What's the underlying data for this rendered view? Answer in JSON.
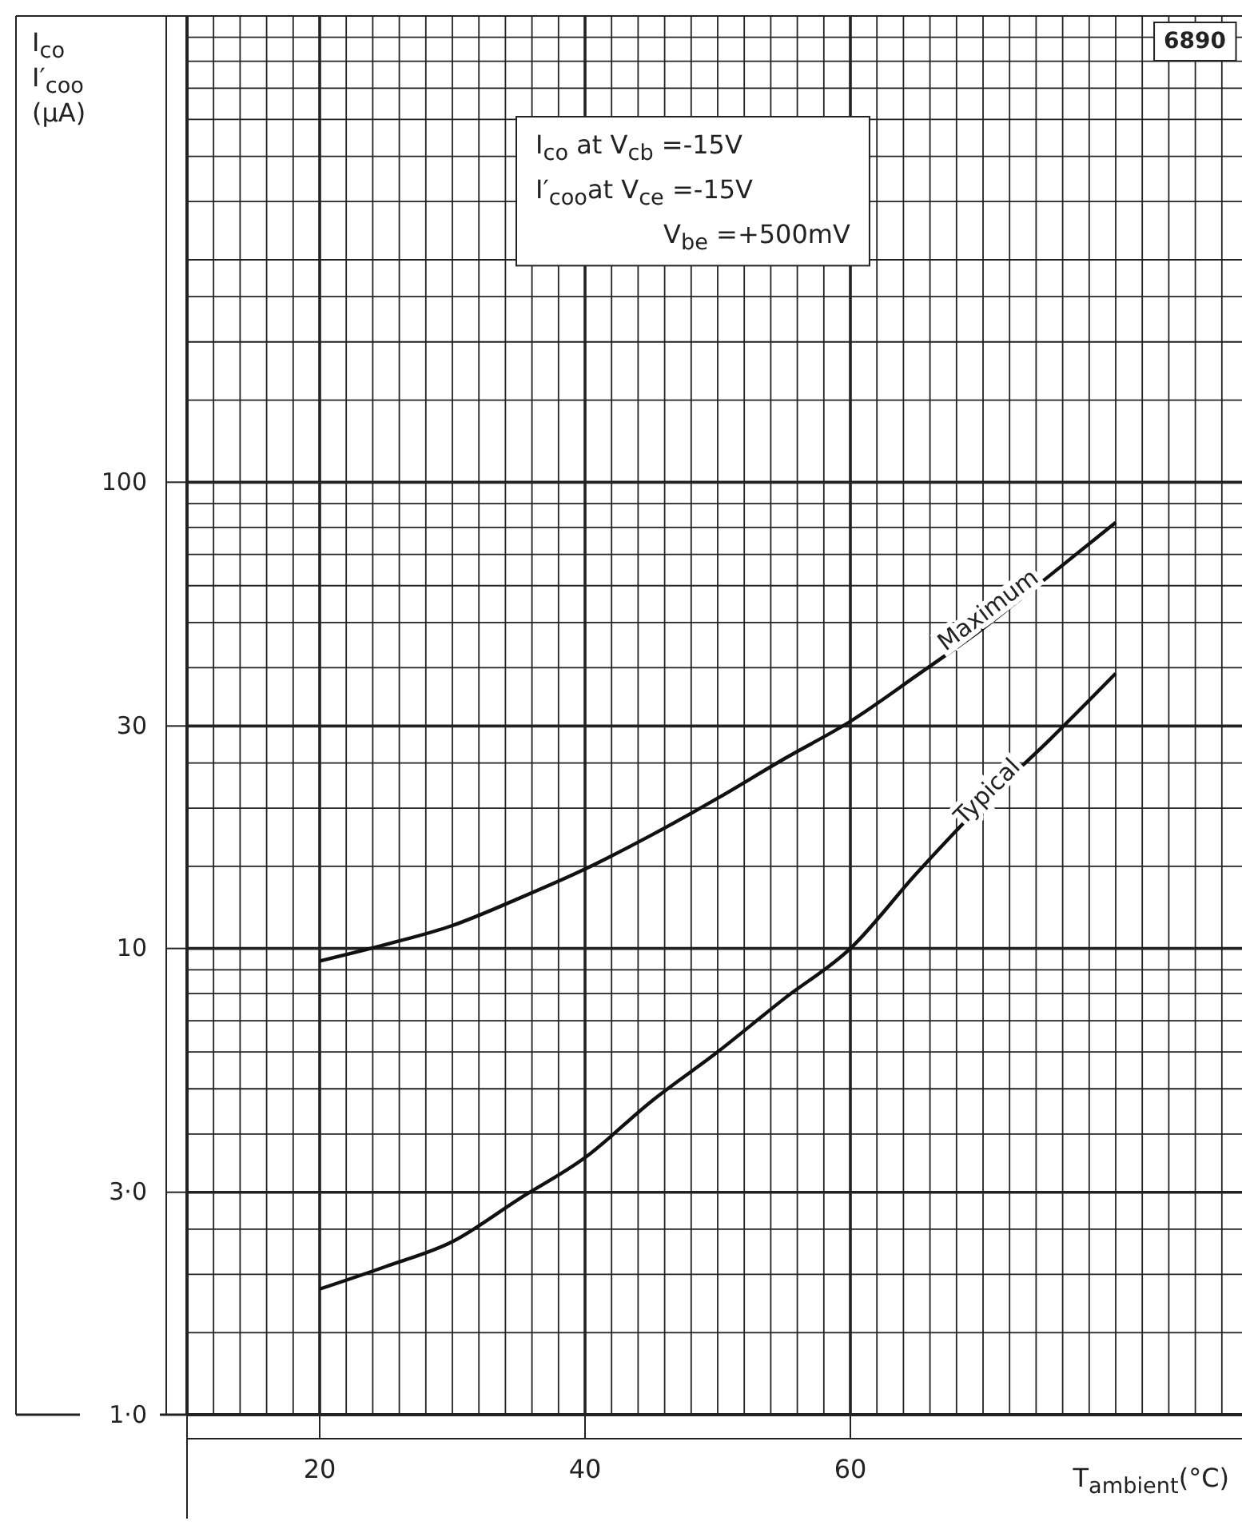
{
  "chart_data": {
    "type": "line",
    "ylabel": "I$_{co}$\nI′$_{coo}$\n(µA)",
    "xlabel": "T$_{ambient}$(°C)",
    "annotations": [
      "6890",
      "I$_{co}$ at V$_{cb}$ =-15V",
      "I′$_{coo}$at V$_{ce}$ =-15V",
      "V$_{be}$ =+500mV"
    ],
    "x": [
      20,
      25,
      30,
      35,
      40,
      45,
      50,
      55,
      60,
      65,
      70,
      75,
      80
    ],
    "series": [
      {
        "name": "Maximum",
        "color": "#111111",
        "values": [
          9.4,
          10.2,
          11.2,
          12.8,
          14.8,
          17.5,
          21,
          25.5,
          30.7,
          38.5,
          48.6,
          63,
          82
        ]
      },
      {
        "name": "Typical",
        "color": "#111111",
        "values": [
          1.86,
          2.08,
          2.35,
          2.9,
          3.56,
          4.7,
          6,
          7.8,
          10,
          14.5,
          20.5,
          28,
          38.9
        ]
      }
    ],
    "log": "y",
    "xlim": [
      10,
      90
    ],
    "xticks": [
      {
        "value": 10,
        "label": null
      },
      {
        "value": 12,
        "label": null
      },
      {
        "value": 14,
        "label": null
      },
      {
        "value": 16,
        "label": null
      },
      {
        "value": 18,
        "label": null
      },
      20,
      {
        "value": 22,
        "label": null
      },
      {
        "value": 24,
        "label": null
      },
      {
        "value": 26,
        "label": null
      },
      {
        "value": 28,
        "label": null
      },
      {
        "value": 30,
        "label": null
      },
      {
        "value": 32,
        "label": null
      },
      {
        "value": 34,
        "label": null
      },
      {
        "value": 36,
        "label": null
      },
      {
        "value": 38,
        "label": null
      },
      40,
      {
        "value": 42,
        "label": null
      },
      {
        "value": 44,
        "label": null
      },
      {
        "value": 46,
        "label": null
      },
      {
        "value": 48,
        "label": null
      },
      {
        "value": 50,
        "label": null
      },
      {
        "value": 52,
        "label": null
      },
      {
        "value": 54,
        "label": null
      },
      {
        "value": 56,
        "label": null
      },
      {
        "value": 58,
        "label": null
      },
      60,
      {
        "value": 62,
        "label": null
      },
      {
        "value": 64,
        "label": null
      },
      {
        "value": 66,
        "label": null
      },
      {
        "value": 68,
        "label": null
      },
      {
        "value": 70,
        "label": null
      },
      {
        "value": 72,
        "label": null
      },
      {
        "value": 74,
        "label": null
      },
      {
        "value": 76,
        "label": null
      },
      {
        "value": 78,
        "label": null
      },
      {
        "value": 80,
        "label": null
      },
      {
        "value": 82,
        "label": null
      },
      {
        "value": 84,
        "label": null
      },
      {
        "value": 86,
        "label": null
      },
      {
        "value": 88,
        "label": null
      }
    ],
    "ylim": [
      1,
      1000
    ],
    "yticks": [
      {
        "value": 1,
        "label": "1·0"
      },
      {
        "value": 1.5,
        "label": null
      },
      {
        "value": 2,
        "label": null
      },
      {
        "value": 2.5,
        "label": null
      },
      {
        "value": 3,
        "label": "3·0"
      },
      {
        "value": 4,
        "label": null
      },
      {
        "value": 5,
        "label": null
      },
      {
        "value": 6,
        "label": null
      },
      {
        "value": 7,
        "label": null
      },
      {
        "value": 8,
        "label": null
      },
      {
        "value": 9,
        "label": null
      },
      10,
      {
        "value": 15,
        "label": null
      },
      {
        "value": 20,
        "label": null
      },
      {
        "value": 25,
        "label": null
      },
      30,
      {
        "value": 40,
        "label": null
      },
      {
        "value": 50,
        "label": null
      },
      {
        "value": 60,
        "label": null
      },
      {
        "value": 70,
        "label": null
      },
      {
        "value": 80,
        "label": null
      },
      {
        "value": 90,
        "label": null
      },
      100,
      {
        "value": 150,
        "label": null
      },
      {
        "value": 200,
        "label": null
      },
      {
        "value": 250,
        "label": null
      },
      {
        "value": 300,
        "label": null
      },
      {
        "value": 400,
        "label": null
      },
      {
        "value": 500,
        "label": null
      },
      {
        "value": 600,
        "label": null
      },
      {
        "value": 700,
        "label": null
      },
      {
        "value": 800,
        "label": null
      },
      {
        "value": 900,
        "label": null
      },
      {
        "value": 1000,
        "label": null
      }
    ],
    "grid": true
  }
}
